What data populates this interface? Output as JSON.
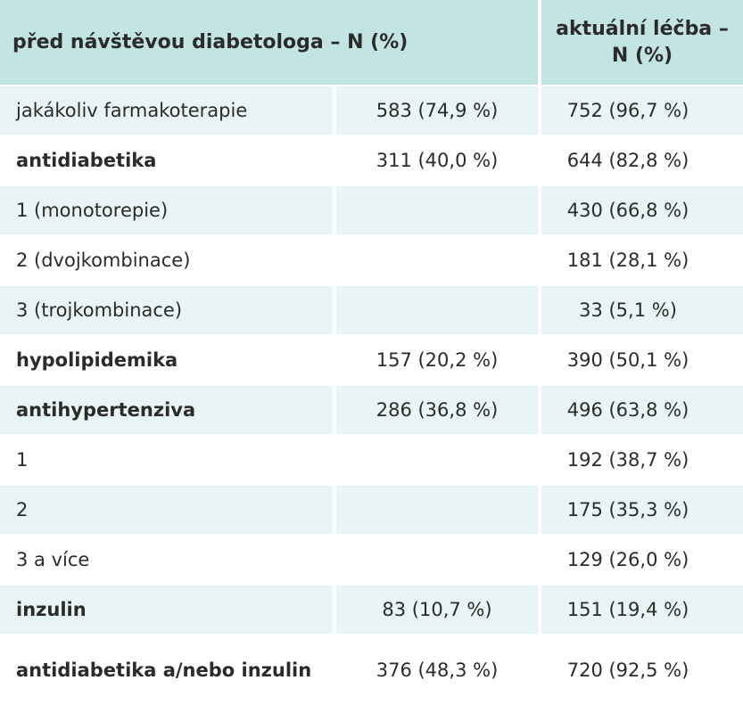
{
  "header": {
    "col1": "před návštěvou diabetologa – N (%)",
    "col3": "aktuální léčba – N (%)"
  },
  "rows": [
    {
      "label": "jakákoliv farmakoterapie",
      "before": "583 (74,9 %)",
      "current": "752 (96,7 %)"
    },
    {
      "label": "antidiabetika",
      "before": "311 (40,0 %)",
      "current": "644 (82,8 %)"
    },
    {
      "label": "1 (monotorepie)",
      "before": "",
      "current": "430 (66,8 %)"
    },
    {
      "label": "2 (dvojkombinace)",
      "before": "",
      "current": "181 (28,1 %)"
    },
    {
      "label": "3 (trojkombinace)",
      "before": "",
      "current": "33 (5,1 %)"
    },
    {
      "label": "hypolipidemika",
      "before": "157 (20,2 %)",
      "current": "390 (50,1 %)"
    },
    {
      "label": "antihypertenziva",
      "before": "286 (36,8 %)",
      "current": "496 (63,8 %)"
    },
    {
      "label": "1",
      "before": "",
      "current": "192 (38,7 %)"
    },
    {
      "label": "2",
      "before": "",
      "current": "175 (35,3 %)"
    },
    {
      "label": "3 a více",
      "before": "",
      "current": "129 (26,0 %)"
    },
    {
      "label": "inzulin",
      "before": "83 (10,7 %)",
      "current": "151 (19,4 %)"
    },
    {
      "label": "antidiabetika a/nebo inzulin",
      "before": "376 (48,3 %)",
      "current": "720 (92,5 %)"
    }
  ]
}
